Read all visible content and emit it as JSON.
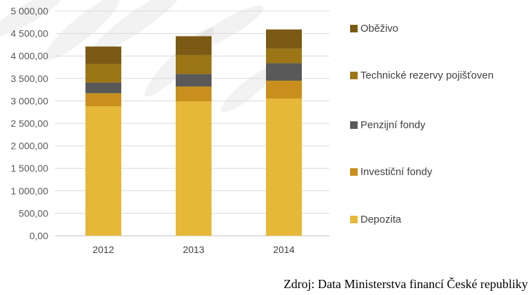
{
  "chart_data": {
    "type": "bar",
    "stacked": true,
    "categories": [
      "2012",
      "2013",
      "2014"
    ],
    "series": [
      {
        "name": "Depozita",
        "color": "#E6B838",
        "values": [
          2880,
          2990,
          3050
        ]
      },
      {
        "name": "Investiční fondy",
        "color": "#C98F1C",
        "values": [
          290,
          330,
          400
        ]
      },
      {
        "name": "Penzijní fondy",
        "color": "#595959",
        "values": [
          240,
          280,
          390
        ]
      },
      {
        "name": "Technické rezervy pojišťoven",
        "color": "#9C7514",
        "values": [
          410,
          420,
          320
        ]
      },
      {
        "name": "Oběživo",
        "color": "#7A5A14",
        "values": [
          390,
          420,
          430
        ]
      }
    ],
    "yticks": [
      "0,00",
      "500,00",
      "1 000,00",
      "1 500,00",
      "2 000,00",
      "2 500,00",
      "3 000,00",
      "3 500,00",
      "4 000,00",
      "4 500,00",
      "5 000,00"
    ],
    "ylim": [
      0,
      5000
    ],
    "grid": true,
    "legend_position": "right"
  },
  "source": "Zdroj: Data Ministerstva financí České republiky"
}
